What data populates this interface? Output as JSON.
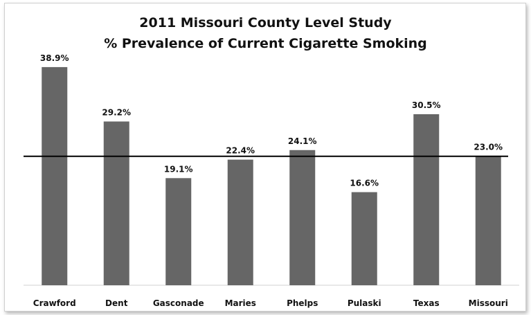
{
  "chart_data": {
    "type": "bar",
    "title_line1": "2011 Missouri County Level Study",
    "title_line2": "% Prevalence of Current Cigarette Smoking",
    "categories": [
      "Crawford",
      "Dent",
      "Gasconade",
      "Maries",
      "Phelps",
      "Pulaski",
      "Texas",
      "Missouri"
    ],
    "values": [
      38.9,
      29.2,
      19.1,
      22.4,
      24.1,
      16.6,
      30.5,
      23.0
    ],
    "data_labels": [
      "38.9%",
      "29.2%",
      "19.1%",
      "22.4%",
      "24.1%",
      "16.6%",
      "30.5%",
      "23.0%"
    ],
    "reference_line": 23.0,
    "xlabel": "",
    "ylabel": "",
    "ylim": [
      0,
      40
    ],
    "grid": false,
    "legend": "none",
    "bar_color": "#666666",
    "reference_line_color": "#000000"
  }
}
